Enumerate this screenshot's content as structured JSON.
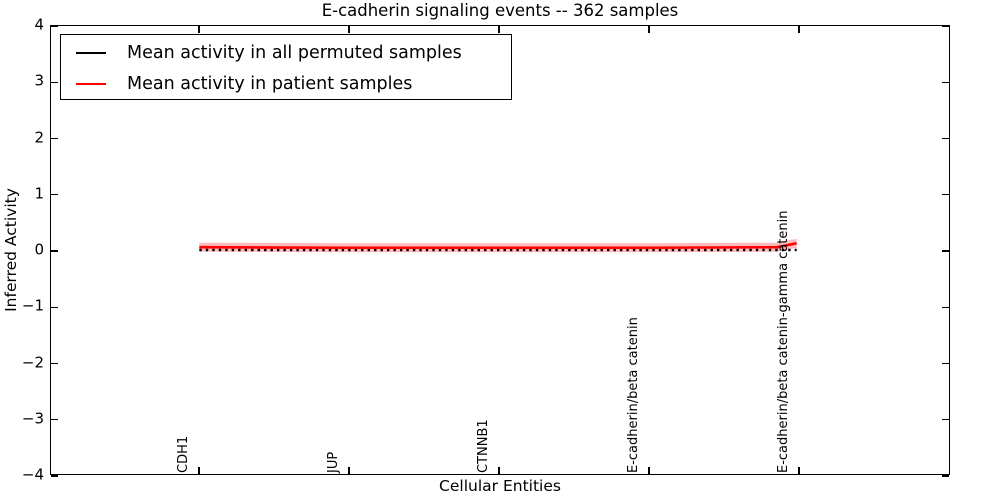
{
  "chart_data": {
    "type": "line",
    "title": "E-cadherin signaling events -- 362 samples",
    "xlabel": "Cellular Entities",
    "ylabel": "Inferred Activity",
    "ylim": [
      -4,
      4
    ],
    "yticks": [
      4,
      3,
      2,
      1,
      0,
      -1,
      -2,
      -3,
      -4
    ],
    "grid": false,
    "legend_position": "upper left",
    "categories": [
      "CDH1",
      "JUP",
      "CTNNB1",
      "E-cadherin/beta catenin",
      "E-cadherin/beta catenin-gamma catenin"
    ],
    "series": [
      {
        "name": "Mean activity in all permuted samples",
        "color": "#000000",
        "line_style": "solid with dotted point markers",
        "x": [
          0,
          1,
          2,
          3,
          4
        ],
        "values": [
          0.0,
          0.0,
          0.0,
          0.0,
          0.0
        ]
      },
      {
        "name": "Mean activity in patient samples",
        "color": "#ff0000",
        "line_style": "solid",
        "x": [
          0,
          1,
          2,
          3,
          3.87,
          4
        ],
        "values": [
          0.05,
          0.04,
          0.04,
          0.04,
          0.05,
          0.12
        ],
        "band_halfwidth": 0.08,
        "band_color": "#ff0000",
        "band_opacity": 0.27
      }
    ]
  }
}
